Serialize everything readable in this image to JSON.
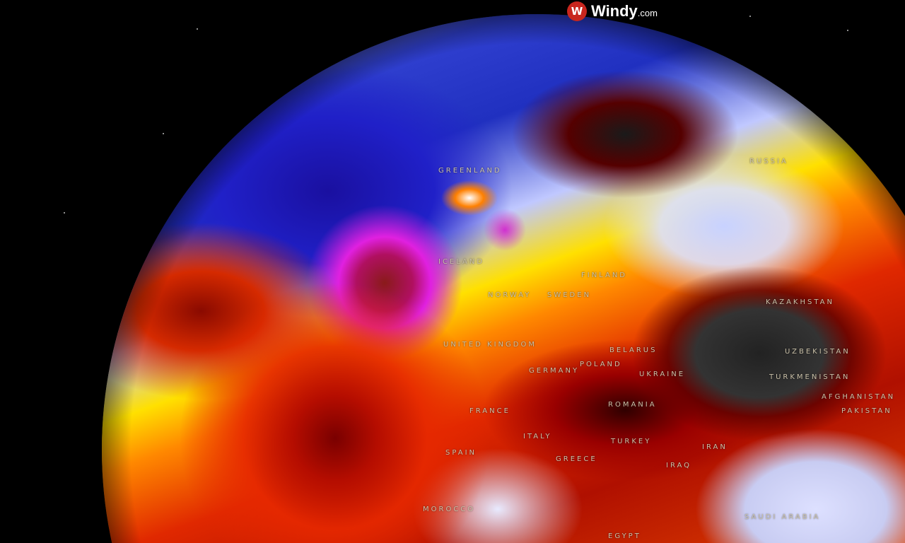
{
  "brand": {
    "name": "Windy",
    "suffix": ".com",
    "logo_icon": "windy-logo-icon",
    "logo_color": "#c8261e"
  },
  "map": {
    "type": "globe",
    "layer_colors": {
      "cold": "#2030c0",
      "extreme_cold": "#e020e0",
      "warm": "#ff8800",
      "hot": "#b01000",
      "extreme_hot": "#333333"
    },
    "labels": {
      "greenland": "GREENLAND",
      "russia": "RUSSIA",
      "iceland": "ICELAND",
      "finland": "FINLAND",
      "norway": "NORWAY",
      "sweden": "SWEDEN",
      "united_kingdom": "UNITED KINGDOM",
      "belarus": "BELARUS",
      "poland": "POLAND",
      "germany": "GERMANY",
      "ukraine": "UKRAINE",
      "kazakhstan": "KAZAKHSTAN",
      "uzbekistan": "UZBEKISTAN",
      "turkmenistan": "TURKMENISTAN",
      "afghanistan": "AFGHANISTAN",
      "pakistan": "PAKISTAN",
      "france": "FRANCE",
      "romania": "ROMANIA",
      "italy": "ITALY",
      "spain": "SPAIN",
      "greece": "GREECE",
      "turkey": "TURKEY",
      "iran": "IRAN",
      "iraq": "IRAQ",
      "morocco": "MOROCCO",
      "saudi_arabia": "SAUDI ARABIA",
      "egypt": "EGYPT"
    }
  }
}
